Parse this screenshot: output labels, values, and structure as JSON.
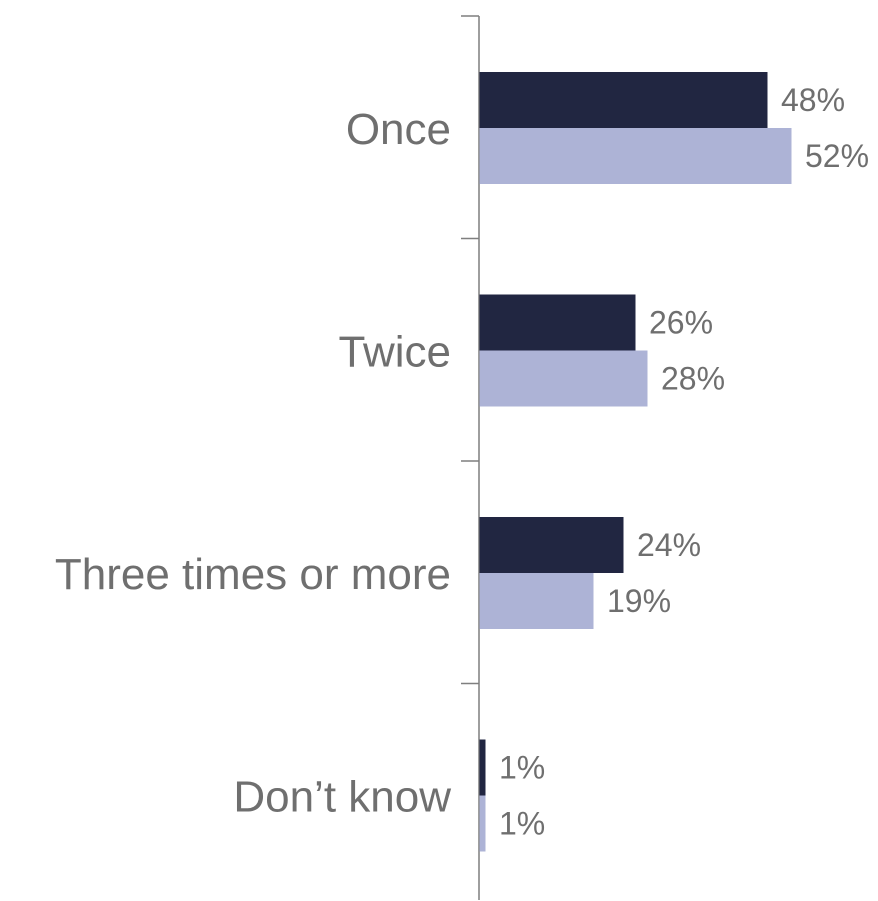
{
  "chart_data": {
    "type": "bar",
    "orientation": "horizontal",
    "categories": [
      "Once",
      "Twice",
      "Three times or more",
      "Don’t know"
    ],
    "series": [
      {
        "values": [
          48,
          26,
          24,
          1
        ],
        "labels": [
          "48%",
          "26%",
          "24%",
          "1%"
        ],
        "color": "#212641"
      },
      {
        "values": [
          52,
          28,
          19,
          1
        ],
        "labels": [
          "52%",
          "28%",
          "19%",
          "1%"
        ],
        "color": "#adb3d6"
      }
    ],
    "unit": "%",
    "xlim": [
      0,
      100
    ],
    "grid": false,
    "legend": "none"
  }
}
